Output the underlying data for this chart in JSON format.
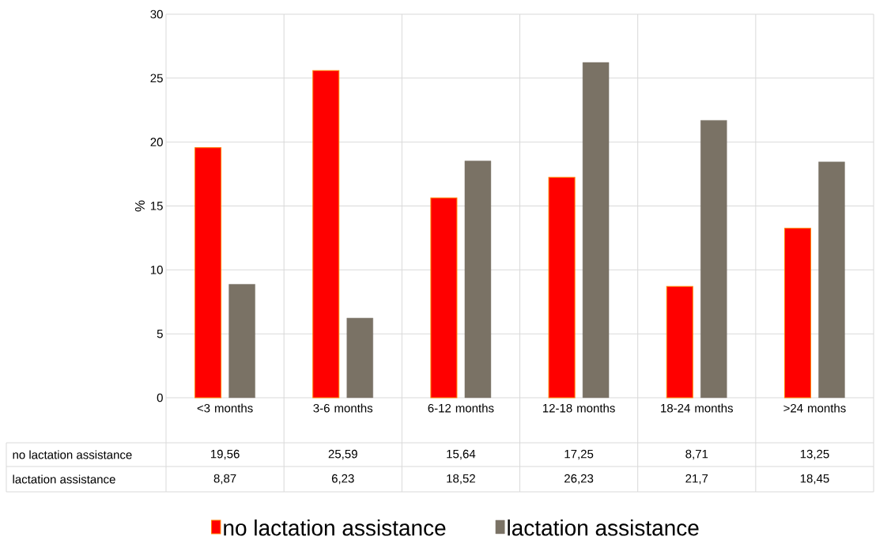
{
  "chart_data": {
    "type": "bar",
    "ylabel": "%",
    "categories": [
      "<3 months",
      "3-6 months",
      "6-12 months",
      "12-18 months",
      "18-24 months",
      ">24 months"
    ],
    "series": [
      {
        "name": "no lactation assistance",
        "color": "#ff0000",
        "values": [
          19.56,
          25.59,
          15.64,
          17.25,
          8.71,
          13.25
        ],
        "value_labels": [
          "19,56",
          "25,59",
          "15,64",
          "17,25",
          "8,71",
          "13,25"
        ]
      },
      {
        "name": "lactation assistance",
        "color": "#7a7265",
        "values": [
          8.87,
          6.23,
          18.52,
          26.23,
          21.7,
          18.45
        ],
        "value_labels": [
          "8,87",
          "6,23",
          "18,52",
          "26,23",
          "21,7",
          "18,45"
        ]
      }
    ],
    "ylim": [
      0,
      30
    ],
    "yticks": [
      0,
      5,
      10,
      15,
      20,
      25,
      30
    ],
    "grid": "y",
    "legend": "bottom"
  }
}
